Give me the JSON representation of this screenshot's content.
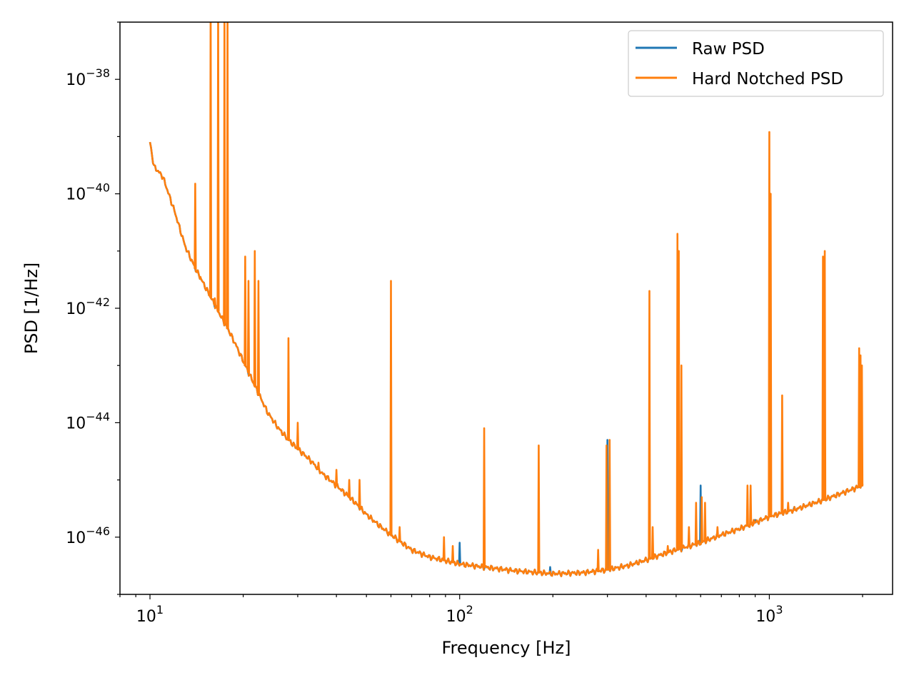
{
  "chart_data": {
    "type": "line",
    "xlabel": "Frequency [Hz]",
    "ylabel": "PSD [1/Hz]",
    "x_scale": "log",
    "y_scale": "log",
    "xlim": [
      8,
      2500
    ],
    "ylim": [
      1e-47,
      1e-37
    ],
    "grid": false,
    "legend_position": "top-right",
    "x_ticks": [
      {
        "value": 10,
        "base": "10",
        "exp": "1"
      },
      {
        "value": 100,
        "base": "10",
        "exp": "2"
      },
      {
        "value": 1000,
        "base": "10",
        "exp": "3"
      }
    ],
    "y_ticks": [
      {
        "value": 1e-38,
        "base": "10",
        "exp": "−38"
      },
      {
        "value": 1e-40,
        "base": "10",
        "exp": "−40"
      },
      {
        "value": 1e-42,
        "base": "10",
        "exp": "−42"
      },
      {
        "value": 1e-44,
        "base": "10",
        "exp": "−44"
      },
      {
        "value": 1e-46,
        "base": "10",
        "exp": "−46"
      }
    ],
    "baseline": [
      [
        10,
        8e-40
      ],
      [
        10.3,
        3e-40
      ],
      [
        11,
        2e-40
      ],
      [
        12,
        5e-41
      ],
      [
        13,
        1.2e-41
      ],
      [
        14,
        5e-42
      ],
      [
        15,
        2.5e-42
      ],
      [
        16,
        1.3e-42
      ],
      [
        17,
        7e-43
      ],
      [
        18,
        4e-43
      ],
      [
        19,
        2.2e-43
      ],
      [
        20,
        1.2e-43
      ],
      [
        22,
        4e-44
      ],
      [
        24,
        1.5e-44
      ],
      [
        26,
        8e-45
      ],
      [
        28,
        5e-45
      ],
      [
        30,
        3.5e-45
      ],
      [
        33,
        2.2e-45
      ],
      [
        36,
        1.3e-45
      ],
      [
        40,
        8e-46
      ],
      [
        45,
        4.5e-46
      ],
      [
        50,
        2.5e-46
      ],
      [
        55,
        1.6e-46
      ],
      [
        60,
        1.1e-46
      ],
      [
        70,
        6e-47
      ],
      [
        80,
        4.5e-47
      ],
      [
        100,
        3.4e-47
      ],
      [
        120,
        3e-47
      ],
      [
        150,
        2.6e-47
      ],
      [
        180,
        2.4e-47
      ],
      [
        200,
        2.3e-47
      ],
      [
        250,
        2.4e-47
      ],
      [
        300,
        2.7e-47
      ],
      [
        350,
        3.2e-47
      ],
      [
        400,
        4e-47
      ],
      [
        450,
        5e-47
      ],
      [
        500,
        6e-47
      ],
      [
        600,
        8e-47
      ],
      [
        700,
        1.1e-46
      ],
      [
        800,
        1.4e-46
      ],
      [
        900,
        1.8e-46
      ],
      [
        1000,
        2.3e-46
      ],
      [
        1200,
        3e-46
      ],
      [
        1500,
        4.5e-46
      ],
      [
        1800,
        6.5e-46
      ],
      [
        2000,
        8e-46
      ]
    ],
    "series": [
      {
        "name": "Raw PSD",
        "color": "#1f77b4",
        "peaks": [
          [
            48,
            2e-46
          ],
          [
            100,
            8e-47
          ],
          [
            196,
            3e-47
          ],
          [
            300,
            5e-45
          ],
          [
            600,
            8e-46
          ],
          [
            900,
            2e-46
          ],
          [
            1500,
            1e-42
          ]
        ]
      },
      {
        "name": "Hard Notched PSD",
        "color": "#ff7f0e",
        "peaks": [
          [
            14,
            1.5e-40
          ],
          [
            14.5,
            3e-42
          ],
          [
            15.7,
            3e-37
          ],
          [
            16.2,
            1.5e-42
          ],
          [
            16.6,
            2e-37
          ],
          [
            17.4,
            1.5e-37
          ],
          [
            17.8,
            2e-37
          ],
          [
            20.3,
            8e-42
          ],
          [
            20.8,
            3e-42
          ],
          [
            21.8,
            1e-41
          ],
          [
            22.4,
            3e-42
          ],
          [
            28,
            3e-43
          ],
          [
            30,
            1e-44
          ],
          [
            35,
            2e-45
          ],
          [
            40,
            1.5e-45
          ],
          [
            44,
            1e-45
          ],
          [
            47.5,
            1e-45
          ],
          [
            60,
            3e-42
          ],
          [
            64,
            1.5e-46
          ],
          [
            89,
            1e-46
          ],
          [
            95,
            7e-47
          ],
          [
            120,
            8e-45
          ],
          [
            180,
            4e-45
          ],
          [
            280,
            6e-47
          ],
          [
            298,
            4e-45
          ],
          [
            305,
            5e-45
          ],
          [
            410,
            2e-42
          ],
          [
            420,
            1.5e-46
          ],
          [
            470,
            7e-47
          ],
          [
            505,
            2e-41
          ],
          [
            510,
            1e-41
          ],
          [
            520,
            1e-43
          ],
          [
            550,
            1.5e-46
          ],
          [
            580,
            4e-46
          ],
          [
            605,
            5e-46
          ],
          [
            620,
            4e-46
          ],
          [
            680,
            1.5e-46
          ],
          [
            850,
            8e-46
          ],
          [
            870,
            8e-46
          ],
          [
            890,
            2e-46
          ],
          [
            1000,
            1.2e-39
          ],
          [
            1010,
            1e-40
          ],
          [
            1100,
            3e-44
          ],
          [
            1150,
            4e-46
          ],
          [
            1200,
            3e-46
          ],
          [
            1490,
            8e-42
          ],
          [
            1510,
            1e-41
          ],
          [
            1950,
            2e-43
          ],
          [
            1970,
            1.5e-43
          ],
          [
            1990,
            1e-43
          ]
        ]
      }
    ]
  }
}
